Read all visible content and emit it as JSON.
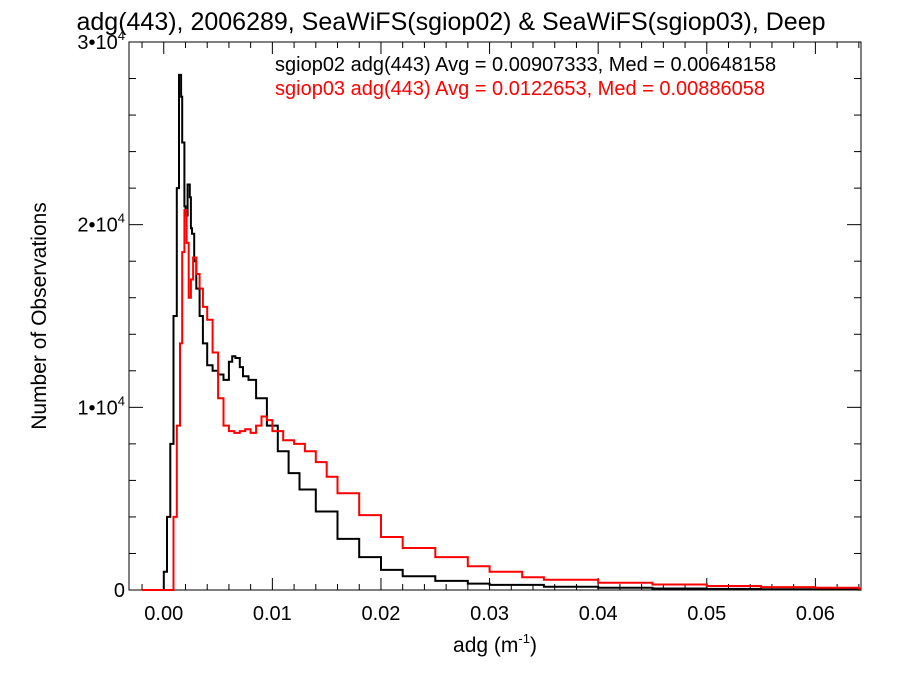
{
  "chart_data": {
    "type": "line",
    "style": "histogram-step",
    "title": "adg(443), 2006289, SeaWiFS(sgiop02) & SeaWiFS(sgiop03), Deep",
    "xlabel": "adg (m",
    "xlabel_sup": "-1",
    "xlabel_close": ")",
    "ylabel": "Number of Observations",
    "xlim": [
      -0.0032,
      0.0642
    ],
    "ylim": [
      0,
      30000
    ],
    "x_ticks": [
      {
        "value": 0.0,
        "label": "0.00"
      },
      {
        "value": 0.01,
        "label": "0.01"
      },
      {
        "value": 0.02,
        "label": "0.02"
      },
      {
        "value": 0.03,
        "label": "0.03"
      },
      {
        "value": 0.04,
        "label": "0.04"
      },
      {
        "value": 0.05,
        "label": "0.05"
      },
      {
        "value": 0.06,
        "label": "0.06"
      }
    ],
    "y_ticks": [
      {
        "value": 0,
        "mantissa": "0",
        "exponent": ""
      },
      {
        "value": 10000,
        "mantissa": "1•10",
        "exponent": "4"
      },
      {
        "value": 20000,
        "mantissa": "2•10",
        "exponent": "4"
      },
      {
        "value": 30000,
        "mantissa": "3•10",
        "exponent": "4"
      }
    ],
    "grid": false,
    "legend_placement": "top-right",
    "series": [
      {
        "name": "sgiop02 adg(443) Avg = 0.00907333, Med = 0.00648158",
        "color": "#000000",
        "x": [
          -0.002,
          -0.0005,
          0.0,
          0.0003,
          0.0006,
          0.0009,
          0.0012,
          0.0014,
          0.0016,
          0.0017,
          0.0019,
          0.002,
          0.0022,
          0.0024,
          0.0025,
          0.0026,
          0.0028,
          0.003,
          0.0033,
          0.0036,
          0.004,
          0.0045,
          0.005,
          0.0055,
          0.006,
          0.0063,
          0.0066,
          0.007,
          0.0073,
          0.0078,
          0.0085,
          0.0095,
          0.0105,
          0.0115,
          0.0125,
          0.014,
          0.016,
          0.018,
          0.02,
          0.022,
          0.025,
          0.028,
          0.03,
          0.035,
          0.04,
          0.045,
          0.05,
          0.055,
          0.06,
          0.064
        ],
        "values": [
          0,
          0,
          1000,
          4000,
          8000,
          15000,
          22000,
          28200,
          27000,
          24500,
          21000,
          20500,
          22200,
          21500,
          19800,
          19500,
          18000,
          16500,
          15000,
          13500,
          12300,
          12000,
          11800,
          11500,
          12500,
          12800,
          12700,
          12200,
          11700,
          11500,
          10500,
          9000,
          7600,
          6400,
          5500,
          4300,
          2800,
          1800,
          1100,
          750,
          500,
          350,
          280,
          180,
          120,
          80,
          60,
          40,
          30,
          20
        ]
      },
      {
        "name": "sgiop03 adg(443) Avg = 0.0122653, Med = 0.00886058",
        "color": "#ff0000",
        "x": [
          -0.002,
          0.0005,
          0.0009,
          0.0012,
          0.0015,
          0.0017,
          0.0019,
          0.0021,
          0.0023,
          0.0025,
          0.0027,
          0.003,
          0.0033,
          0.0036,
          0.004,
          0.0045,
          0.005,
          0.0055,
          0.006,
          0.0065,
          0.007,
          0.0075,
          0.008,
          0.0085,
          0.009,
          0.0095,
          0.01,
          0.011,
          0.012,
          0.013,
          0.014,
          0.015,
          0.016,
          0.018,
          0.02,
          0.022,
          0.025,
          0.028,
          0.03,
          0.033,
          0.035,
          0.04,
          0.045,
          0.05,
          0.055,
          0.06,
          0.064
        ],
        "values": [
          0,
          0,
          4000,
          9000,
          13500,
          18500,
          20800,
          19000,
          16000,
          17000,
          18200,
          17300,
          16500,
          15500,
          14800,
          13000,
          10500,
          9000,
          8700,
          8600,
          8700,
          8800,
          8600,
          9000,
          9500,
          9300,
          8700,
          8200,
          8000,
          7600,
          7000,
          6200,
          5300,
          4100,
          2900,
          2300,
          1800,
          1300,
          1000,
          700,
          560,
          400,
          300,
          220,
          160,
          120,
          80
        ]
      }
    ]
  }
}
